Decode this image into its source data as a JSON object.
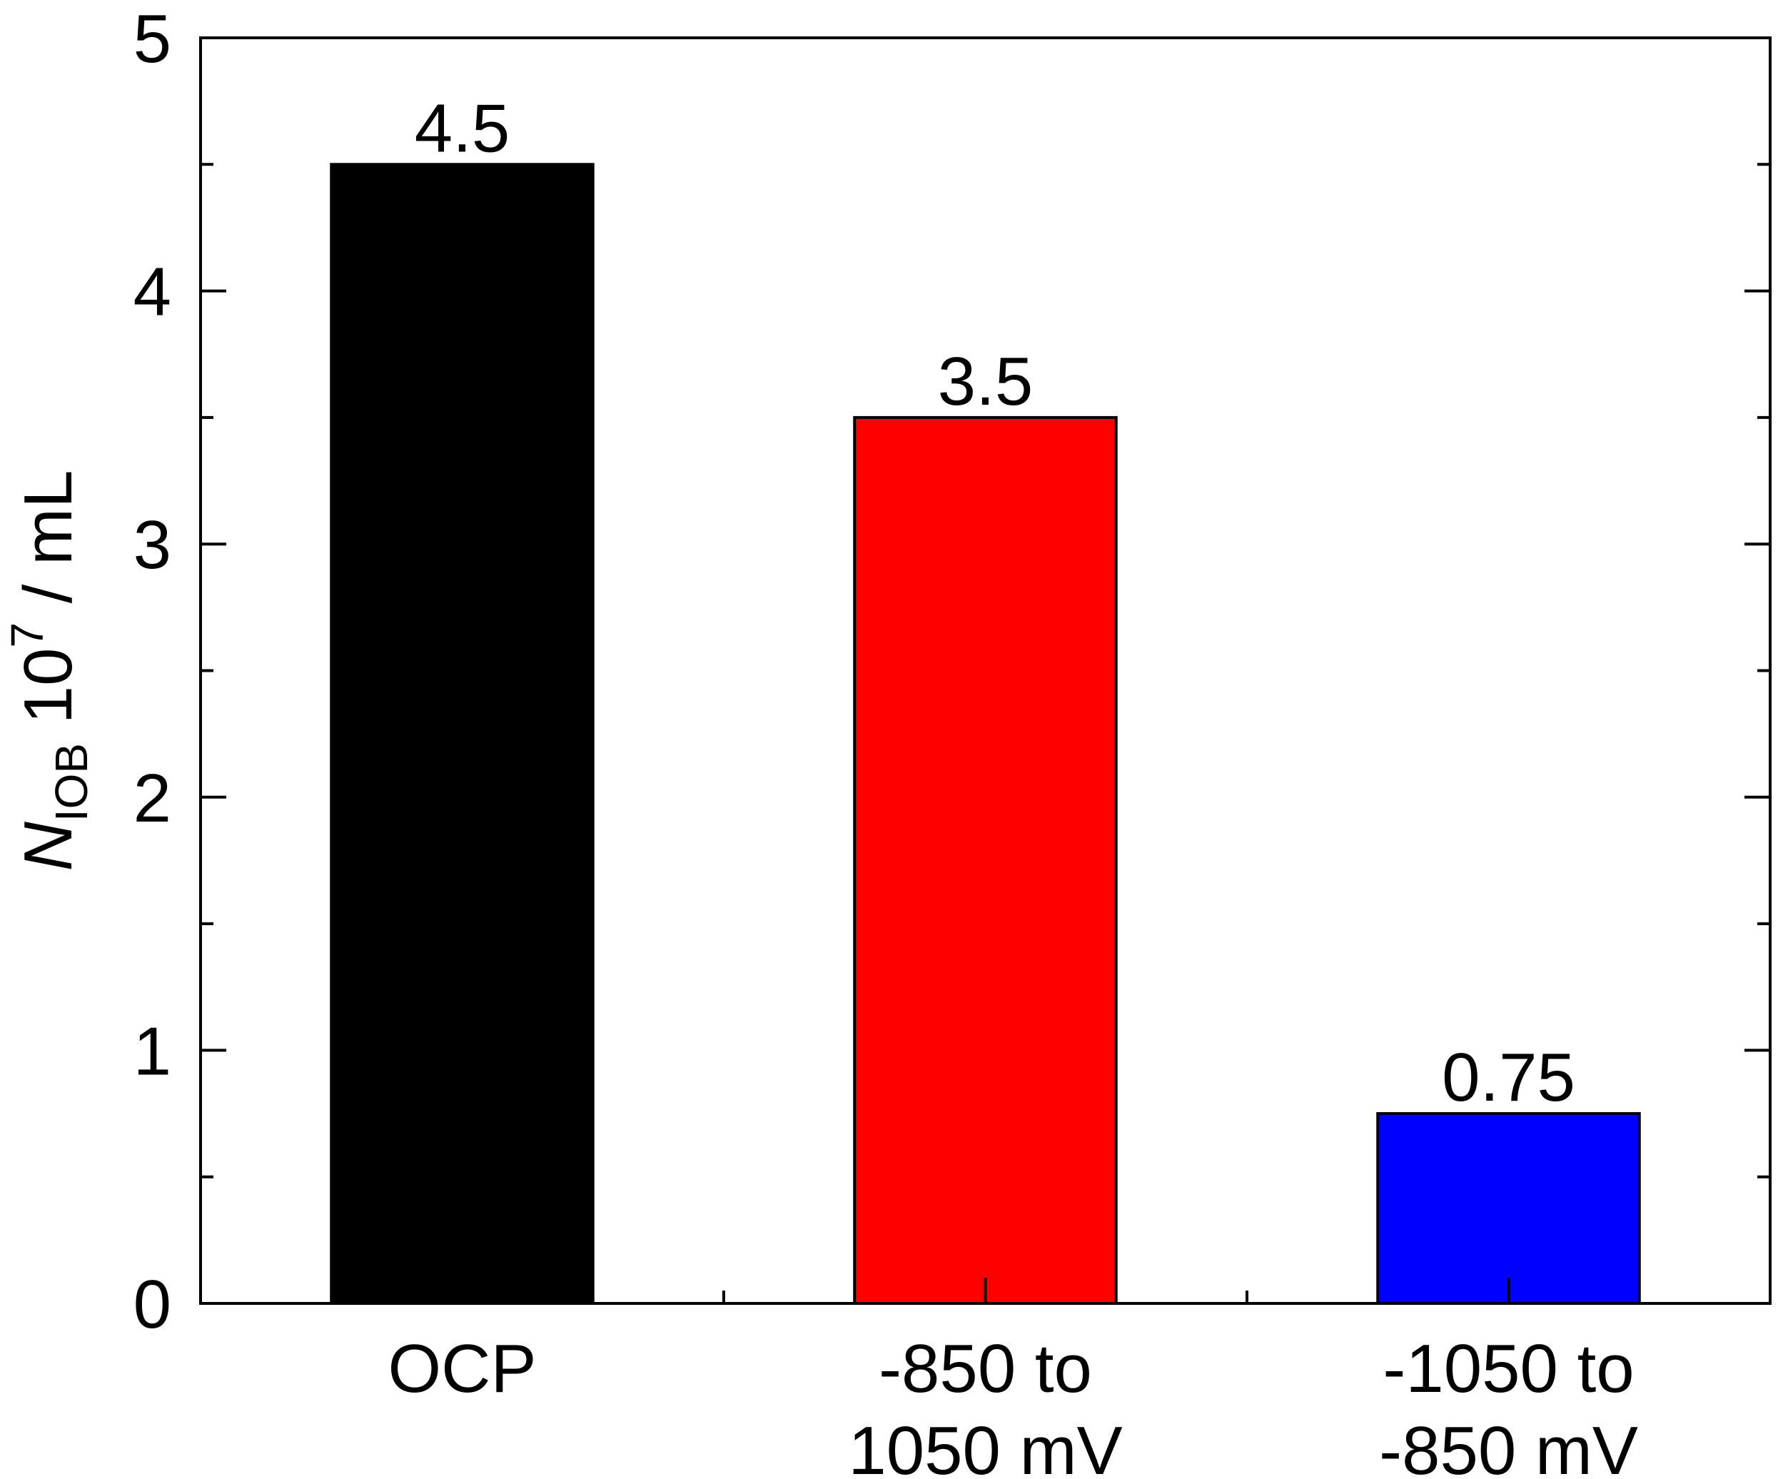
{
  "chart_data": {
    "type": "bar",
    "categories": [
      [
        "OCP"
      ],
      [
        "-850 to",
        "1050 mV"
      ],
      [
        "-1050 to",
        "-850 mV"
      ]
    ],
    "values": [
      4.5,
      3.5,
      0.75
    ],
    "data_labels": [
      "4.5",
      "3.5",
      "0.75"
    ],
    "bar_colors": [
      "#000000",
      "#ff0000",
      "#0000ff"
    ],
    "ylabel": {
      "italic": "N",
      "subscript": "IOB",
      "middle": " 10",
      "superscript": "7",
      "tail": " / mL"
    },
    "ylim": [
      0,
      5
    ],
    "yticks": [
      "0",
      "1",
      "2",
      "3",
      "4",
      "5"
    ],
    "grid": false,
    "legend": "none"
  }
}
